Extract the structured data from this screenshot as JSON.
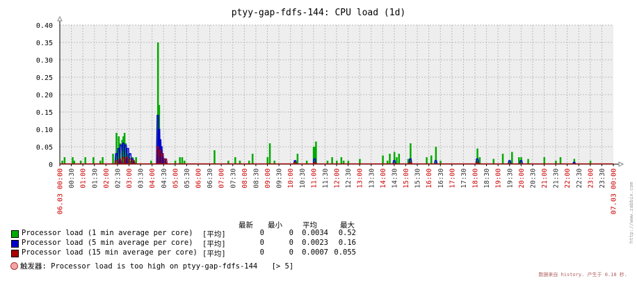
{
  "chart_data": {
    "type": "line",
    "title": "ptyy-gap-fdfs-144: CPU load (1d)",
    "ylim": [
      0,
      0.4
    ],
    "y_ticks": [
      "0",
      "0.05",
      "0.10",
      "0.15",
      "0.20",
      "0.25",
      "0.30",
      "0.35",
      "0.40"
    ],
    "x_range_hours": [
      0,
      24
    ],
    "x_ticks": [
      "06.03 00:00",
      "00:30",
      "01:00",
      "01:30",
      "02:00",
      "02:30",
      "03:00",
      "03:30",
      "04:00",
      "04:30",
      "05:00",
      "05:30",
      "06:00",
      "06:30",
      "07:00",
      "07:30",
      "08:00",
      "08:30",
      "09:00",
      "09:30",
      "10:00",
      "10:30",
      "11:00",
      "11:30",
      "12:00",
      "12:30",
      "13:00",
      "13:30",
      "14:00",
      "14:30",
      "15:00",
      "15:30",
      "16:00",
      "16:30",
      "17:00",
      "17:30",
      "18:00",
      "18:30",
      "19:00",
      "19:30",
      "20:00",
      "20:30",
      "21:00",
      "21:30",
      "22:00",
      "22:30",
      "23:00",
      "23:30",
      "07.03 00:00"
    ],
    "grid": true,
    "colors": {
      "one_min": "#00aa00",
      "five_min": "#0000cc",
      "fifteen_min": "#aa0000",
      "plot_bg": "#eeeeee",
      "grid": "#bbbbbb",
      "hour_tick_label": "#cc0000",
      "halfhour_tick_label": "#333333"
    },
    "series": [
      {
        "name": "Processor load (1 min average per core)",
        "x_hours": [
          0.1,
          0.2,
          0.55,
          0.62,
          0.9,
          1.1,
          1.45,
          1.75,
          1.85,
          2.3,
          2.45,
          2.55,
          2.6,
          2.7,
          2.75,
          2.8,
          2.85,
          2.9,
          2.95,
          3.0,
          3.05,
          3.15,
          3.3,
          3.95,
          4.25,
          4.3,
          4.35,
          4.4,
          4.45,
          4.55,
          5.0,
          5.2,
          5.3,
          5.4,
          6.7,
          7.3,
          7.6,
          7.8,
          8.2,
          8.35,
          9.0,
          9.1,
          9.3,
          10.2,
          10.3,
          10.7,
          11.0,
          11.05,
          11.1,
          11.6,
          11.8,
          12.0,
          12.2,
          12.3,
          12.5,
          13.0,
          14.0,
          14.2,
          14.3,
          14.5,
          14.6,
          14.7,
          15.1,
          15.2,
          15.9,
          16.1,
          16.3,
          16.5,
          18.1,
          18.2,
          18.8,
          19.2,
          19.5,
          19.6,
          19.9,
          20.0,
          20.3,
          21.0,
          21.5,
          21.7,
          22.3,
          23.0
        ],
        "values": [
          0.01,
          0.02,
          0.02,
          0.01,
          0.01,
          0.02,
          0.02,
          0.01,
          0.02,
          0.03,
          0.09,
          0.08,
          0.06,
          0.07,
          0.08,
          0.09,
          0.06,
          0.04,
          0.03,
          0.02,
          0.01,
          0.02,
          0.02,
          0.01,
          0.35,
          0.17,
          0.06,
          0.04,
          0.02,
          0.01,
          0.01,
          0.02,
          0.02,
          0.01,
          0.04,
          0.01,
          0.02,
          0.01,
          0.01,
          0.03,
          0.02,
          0.06,
          0.01,
          0.01,
          0.03,
          0.01,
          0.05,
          0.05,
          0.065,
          0.01,
          0.02,
          0.01,
          0.02,
          0.01,
          0.01,
          0.015,
          0.025,
          0.01,
          0.03,
          0.035,
          0.02,
          0.03,
          0.015,
          0.06,
          0.02,
          0.025,
          0.05,
          0.01,
          0.045,
          0.02,
          0.015,
          0.03,
          0.01,
          0.035,
          0.02,
          0.02,
          0.015,
          0.02,
          0.01,
          0.02,
          0.015,
          0.01
        ]
      },
      {
        "name": "Processor load (5 min average per core)",
        "x_hours": [
          2.45,
          2.55,
          2.65,
          2.75,
          2.85,
          2.95,
          3.05,
          3.15,
          4.25,
          4.3,
          4.35,
          4.4,
          4.45,
          4.55,
          10.2,
          11.05,
          14.5,
          15.2,
          16.3,
          18.1,
          19.5,
          20.0,
          22.3
        ],
        "values": [
          0.03,
          0.045,
          0.055,
          0.06,
          0.055,
          0.045,
          0.03,
          0.015,
          0.14,
          0.1,
          0.07,
          0.05,
          0.03,
          0.015,
          0.01,
          0.015,
          0.01,
          0.015,
          0.01,
          0.015,
          0.01,
          0.01,
          0.005
        ]
      },
      {
        "name": "Processor load (15 min average per core)",
        "x_hours": [
          2.45,
          2.6,
          2.75,
          2.9,
          3.05,
          3.2,
          4.25,
          4.35,
          4.45,
          4.6,
          10.2,
          11.05,
          15.2,
          18.1
        ],
        "values": [
          0.01,
          0.015,
          0.02,
          0.02,
          0.015,
          0.01,
          0.05,
          0.04,
          0.03,
          0.015,
          0.005,
          0.005,
          0.005,
          0.005
        ]
      }
    ]
  },
  "legend": {
    "headers": [
      "最新",
      "最小",
      "平均",
      "最大"
    ],
    "rows": [
      {
        "name": "Processor load (1 min average per core)",
        "fn": "[平均]",
        "last": "0",
        "min": "0",
        "avg": "0.0034",
        "max": "0.52",
        "color": "#00aa00"
      },
      {
        "name": "Processor load (5 min average per core)",
        "fn": "[平均]",
        "last": "0",
        "min": "0",
        "avg": "0.0023",
        "max": "0.16",
        "color": "#0000cc"
      },
      {
        "name": "Processor load (15 min average per core)",
        "fn": "[平均]",
        "last": "0",
        "min": "0",
        "avg": "0.0007",
        "max": "0.055",
        "color": "#aa0000"
      }
    ]
  },
  "trigger": {
    "text": "触发器: Processor load is too high on ptyy-gap-fdfs-144",
    "threshold": "[> 5]"
  },
  "footer": "数据来自 history. 产生于 0.18 秒.",
  "side_text": "http://www.zabbix.com"
}
